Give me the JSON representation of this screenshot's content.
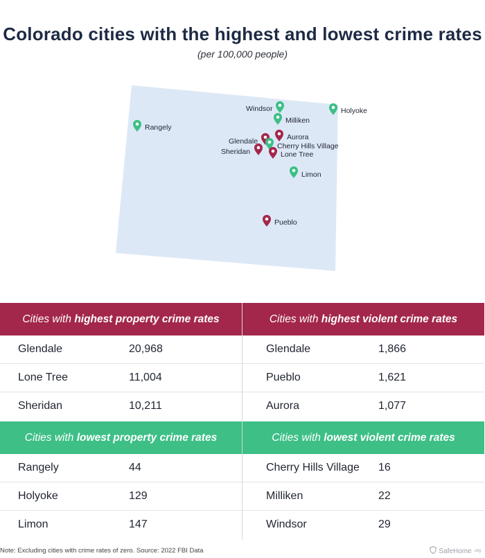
{
  "header": {
    "title": "Colorado cities with the highest and lowest crime rates",
    "subtitle": "(per 100,000 people)"
  },
  "map": {
    "colors": {
      "state_fill": "#dde8f7",
      "high_pin": "#a3274a",
      "low_pin": "#3dbf86"
    },
    "pins": [
      {
        "name": "Windsor",
        "type": "low"
      },
      {
        "name": "Holyoke",
        "type": "low"
      },
      {
        "name": "Milliken",
        "type": "low"
      },
      {
        "name": "Rangely",
        "type": "low"
      },
      {
        "name": "Glendale",
        "type": "high"
      },
      {
        "name": "Aurora",
        "type": "high"
      },
      {
        "name": "Cherry Hills Village",
        "type": "low"
      },
      {
        "name": "Sheridan",
        "type": "high"
      },
      {
        "name": "Lone Tree",
        "type": "high"
      },
      {
        "name": "Limon",
        "type": "low"
      },
      {
        "name": "Pueblo",
        "type": "high"
      }
    ]
  },
  "tables": {
    "high_property": {
      "title_prefix": "Cities with ",
      "title_bold": "highest property crime rates",
      "rows": [
        {
          "city": "Glendale",
          "value": "20,968"
        },
        {
          "city": "Lone Tree",
          "value": "11,004"
        },
        {
          "city": "Sheridan",
          "value": "10,211"
        }
      ]
    },
    "high_violent": {
      "title_prefix": "Cities with ",
      "title_bold": "highest violent crime rates",
      "rows": [
        {
          "city": "Glendale",
          "value": "1,866"
        },
        {
          "city": "Pueblo",
          "value": "1,621"
        },
        {
          "city": "Aurora",
          "value": "1,077"
        }
      ]
    },
    "low_property": {
      "title_prefix": "Cities with ",
      "title_bold": "lowest property crime rates",
      "rows": [
        {
          "city": "Rangely",
          "value": "44"
        },
        {
          "city": "Holyoke",
          "value": "129"
        },
        {
          "city": "Limon",
          "value": "147"
        }
      ]
    },
    "low_violent": {
      "title_prefix": "Cities with ",
      "title_bold": "lowest violent crime rates",
      "rows": [
        {
          "city": "Cherry Hills Village",
          "value": "16"
        },
        {
          "city": "Milliken",
          "value": "22"
        },
        {
          "city": "Windsor",
          "value": "29"
        }
      ]
    }
  },
  "footer": {
    "note": "Note: Excluding cities with crime rates of zero. Source: 2022 FBI Data",
    "brand": "SafeHome",
    "brand_suffix": ".org"
  }
}
